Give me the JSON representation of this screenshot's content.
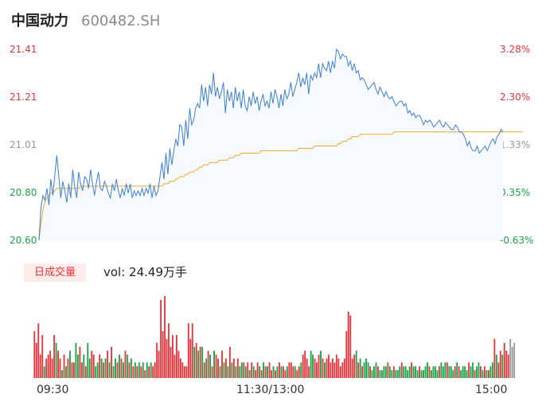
{
  "header": {
    "name": "中国动力",
    "code": "600482.SH"
  },
  "price_axis": [
    "21.41",
    "21.21",
    "21.01",
    "20.80",
    "20.60"
  ],
  "pct_axis": [
    "3.28%",
    "2.30%",
    "1.33%",
    "0.35%",
    "-0.63%"
  ],
  "volume": {
    "tab_label": "日成交量",
    "summary": "vol: 24.49万手"
  },
  "time_axis": [
    "09:30",
    "11:30/13:00",
    "15:00"
  ],
  "colors": {
    "up": "#e8353b",
    "down": "#1aa34a",
    "neutral": "#999999",
    "price_line": "#3b7fd9",
    "avg_line": "#f0a92a",
    "area_fill": "#f6f9fd"
  },
  "chart_data": {
    "type": "line",
    "ylim": [
      20.6,
      21.41
    ],
    "pct_range": [
      "-0.63%",
      "3.28%"
    ],
    "minutes": 240,
    "price": [
      20.6,
      20.74,
      20.79,
      20.77,
      20.82,
      20.75,
      20.86,
      20.79,
      20.88,
      20.96,
      20.87,
      20.78,
      20.85,
      20.81,
      20.76,
      20.84,
      20.78,
      20.9,
      20.83,
      20.78,
      20.89,
      20.84,
      20.81,
      20.87,
      20.86,
      20.82,
      20.9,
      20.84,
      20.79,
      20.85,
      20.89,
      20.82,
      20.81,
      20.85,
      20.83,
      20.8,
      20.78,
      20.84,
      20.81,
      20.86,
      20.81,
      20.78,
      20.82,
      20.79,
      20.84,
      20.8,
      20.84,
      20.78,
      20.81,
      20.79,
      20.81,
      20.79,
      20.82,
      20.79,
      20.82,
      20.8,
      20.84,
      20.78,
      20.83,
      20.79,
      20.81,
      20.87,
      20.93,
      20.86,
      20.97,
      20.88,
      20.99,
      20.92,
      20.98,
      21.03,
      21.0,
      21.09,
      21.08,
      21.0,
      21.11,
      21.03,
      21.16,
      21.09,
      21.11,
      21.16,
      21.18,
      21.16,
      21.26,
      21.19,
      21.25,
      21.17,
      21.26,
      21.22,
      21.31,
      21.21,
      21.25,
      21.2,
      21.23,
      21.27,
      21.14,
      21.24,
      21.19,
      21.23,
      21.16,
      21.25,
      21.19,
      21.23,
      21.16,
      21.24,
      21.17,
      21.15,
      21.21,
      21.17,
      21.23,
      21.18,
      21.21,
      21.15,
      21.19,
      21.22,
      21.17,
      21.19,
      21.16,
      21.23,
      21.18,
      21.24,
      21.21,
      21.16,
      21.22,
      21.17,
      21.24,
      21.2,
      21.22,
      21.27,
      21.21,
      21.24,
      21.27,
      21.31,
      21.25,
      21.29,
      21.26,
      21.31,
      21.22,
      21.3,
      21.28,
      21.31,
      21.29,
      21.35,
      21.29,
      21.35,
      21.33,
      21.32,
      21.36,
      21.31,
      21.36,
      21.33,
      21.41,
      21.4,
      21.37,
      21.39,
      21.38,
      21.38,
      21.34,
      21.36,
      21.32,
      21.35,
      21.31,
      21.32,
      21.28,
      21.29,
      21.28,
      21.26,
      21.24,
      21.25,
      21.26,
      21.27,
      21.24,
      21.22,
      21.25,
      21.23,
      21.21,
      21.23,
      21.21,
      21.2,
      21.21,
      21.19,
      21.17,
      21.18,
      21.19,
      21.19,
      21.17,
      21.18,
      21.14,
      21.15,
      21.13,
      21.14,
      21.12,
      21.13,
      21.13,
      21.11,
      21.09,
      21.11,
      21.1,
      21.11,
      21.1,
      21.08,
      21.09,
      21.1,
      21.11,
      21.09,
      21.08,
      21.1,
      21.09,
      21.08,
      21.07,
      21.07,
      21.09,
      21.08,
      21.06,
      21.06,
      21.05,
      21.03,
      21.0,
      21.02,
      20.99,
      20.98,
      20.98,
      21.0,
      20.97,
      20.98,
      20.99,
      21.0,
      20.98,
      21.0,
      21.02,
      21.03,
      21.01,
      21.04,
      21.05,
      21.07,
      21.06
    ],
    "avg": [
      20.6,
      20.67,
      20.73,
      20.76,
      20.78,
      20.79,
      20.8,
      20.8,
      20.81,
      20.82,
      20.82,
      20.82,
      20.82,
      20.82,
      20.82,
      20.82,
      20.82,
      20.82,
      20.82,
      20.82,
      20.82,
      20.83,
      20.83,
      20.83,
      20.83,
      20.83,
      20.83,
      20.83,
      20.83,
      20.83,
      20.83,
      20.83,
      20.83,
      20.83,
      20.83,
      20.83,
      20.83,
      20.83,
      20.83,
      20.83,
      20.83,
      20.83,
      20.83,
      20.83,
      20.83,
      20.83,
      20.83,
      20.83,
      20.83,
      20.83,
      20.83,
      20.83,
      20.83,
      20.83,
      20.83,
      20.83,
      20.83,
      20.83,
      20.83,
      20.83,
      20.83,
      20.83,
      20.83,
      20.84,
      20.84,
      20.84,
      20.85,
      20.85,
      20.85,
      20.86,
      20.86,
      20.87,
      20.87,
      20.87,
      20.88,
      20.88,
      20.89,
      20.89,
      20.89,
      20.9,
      20.9,
      20.91,
      20.91,
      20.92,
      20.92,
      20.92,
      20.93,
      20.93,
      20.93,
      20.93,
      20.93,
      20.94,
      20.94,
      20.94,
      20.94,
      20.94,
      20.95,
      20.95,
      20.95,
      20.96,
      20.96,
      20.96,
      20.97,
      20.97,
      20.97,
      20.97,
      20.97,
      20.97,
      20.97,
      20.97,
      20.97,
      20.97,
      20.98,
      20.98,
      20.98,
      20.98,
      20.98,
      20.98,
      20.98,
      20.98,
      20.98,
      20.98,
      20.98,
      20.98,
      20.98,
      20.98,
      20.98,
      20.98,
      20.98,
      20.98,
      20.98,
      20.99,
      20.99,
      20.99,
      20.99,
      20.99,
      20.99,
      20.99,
      20.99,
      21.0,
      21.0,
      21.0,
      21.0,
      21.0,
      21.0,
      21.0,
      21.0,
      21.0,
      21.0,
      21.0,
      21.0,
      21.01,
      21.01,
      21.02,
      21.02,
      21.02,
      21.03,
      21.03,
      21.04,
      21.04,
      21.04,
      21.04,
      21.05,
      21.05,
      21.05,
      21.05,
      21.05,
      21.05,
      21.05,
      21.05,
      21.05,
      21.05,
      21.05,
      21.05,
      21.05,
      21.05,
      21.05,
      21.05,
      21.05,
      21.06,
      21.06,
      21.06,
      21.06,
      21.06,
      21.06,
      21.06,
      21.06,
      21.06,
      21.06,
      21.06,
      21.06,
      21.06,
      21.06,
      21.06,
      21.06,
      21.06,
      21.06,
      21.06,
      21.06,
      21.06,
      21.06,
      21.06,
      21.06,
      21.06,
      21.06,
      21.06,
      21.06,
      21.06,
      21.06,
      21.06,
      21.06,
      21.06,
      21.06,
      21.06,
      21.06,
      21.06,
      21.06,
      21.06,
      21.06,
      21.06,
      21.06,
      21.06,
      21.06,
      21.06,
      21.06,
      21.06,
      21.06,
      21.06,
      21.06,
      21.06,
      21.06,
      21.06,
      21.06,
      21.06,
      21.06,
      21.06,
      21.06,
      21.06,
      21.06,
      21.06,
      21.06,
      21.06,
      21.06,
      21.06,
      21.06
    ],
    "volume": [
      12,
      9,
      14,
      6,
      11,
      3,
      5,
      6,
      7,
      5,
      11,
      9,
      7,
      5,
      2,
      6,
      3,
      5,
      7,
      4,
      4,
      9,
      6,
      8,
      4,
      6,
      3,
      9,
      5,
      7,
      6,
      3,
      4,
      6,
      5,
      4,
      5,
      7,
      4,
      8,
      3,
      5,
      4,
      6,
      5,
      4,
      7,
      6,
      4,
      5,
      3,
      4,
      3,
      4,
      3,
      4,
      2,
      4,
      3,
      4,
      3,
      4,
      9,
      7,
      20,
      12,
      21,
      10,
      14,
      8,
      11,
      6,
      11,
      7,
      5,
      4,
      3,
      3,
      14,
      10,
      14,
      8,
      9,
      7,
      8,
      8,
      4,
      5,
      7,
      6,
      3,
      7,
      6,
      5,
      3,
      7,
      4,
      5,
      3,
      8,
      4,
      5,
      3,
      5,
      3,
      4,
      4,
      3,
      4,
      2,
      4,
      3,
      2,
      4,
      3,
      2,
      4,
      3,
      3,
      4,
      2,
      3,
      2,
      3,
      4,
      3,
      3,
      2,
      3,
      4,
      4,
      3,
      3,
      2,
      3,
      4,
      6,
      7,
      5,
      3,
      7,
      6,
      5,
      4,
      6,
      7,
      5,
      4,
      5,
      6,
      4,
      5,
      4,
      6,
      5,
      3,
      4,
      5,
      12,
      17,
      16,
      5,
      6,
      7,
      4,
      5,
      3,
      4,
      5,
      4,
      3,
      2,
      3,
      4,
      3,
      2,
      2,
      3,
      3,
      4,
      3,
      2,
      3,
      2,
      2,
      3,
      4,
      3,
      3,
      2,
      3,
      4,
      3,
      3,
      2,
      3,
      2,
      2,
      3,
      4,
      3,
      2,
      3,
      3,
      2,
      3,
      4,
      3,
      4,
      4,
      3,
      3,
      2,
      3,
      4,
      3,
      2,
      3,
      3,
      2,
      4,
      3,
      4,
      2,
      3,
      4,
      3,
      2,
      3,
      2,
      2,
      3,
      4,
      10,
      6,
      4,
      7,
      6,
      9,
      7,
      6,
      10,
      8,
      9
    ],
    "volume_dir": [
      1,
      1,
      1,
      1,
      1,
      -1,
      1,
      1,
      1,
      1,
      1,
      -1,
      1,
      1,
      -1,
      1,
      -1,
      1,
      -1,
      1,
      1,
      -1,
      -1,
      1,
      1,
      -1,
      1,
      -1,
      -1,
      1,
      1,
      -1,
      -1,
      1,
      -1,
      1,
      -1,
      1,
      -1,
      1,
      -1,
      -1,
      1,
      -1,
      1,
      -1,
      1,
      -1,
      1,
      -1,
      1,
      -1,
      1,
      -1,
      1,
      -1,
      1,
      -1,
      1,
      -1,
      1,
      1,
      1,
      1,
      1,
      1,
      1,
      1,
      1,
      1,
      1,
      1,
      1,
      1,
      1,
      1,
      1,
      1,
      1,
      1,
      1,
      -1,
      1,
      -1,
      1,
      -1,
      1,
      -1,
      1,
      -1,
      1,
      -1,
      1,
      1,
      -1,
      1,
      -1,
      1,
      -1,
      1,
      -1,
      1,
      -1,
      1,
      -1,
      -1,
      1,
      -1,
      1,
      -1,
      1,
      -1,
      1,
      1,
      -1,
      1,
      -1,
      1,
      -1,
      1,
      1,
      -1,
      1,
      -1,
      1,
      -1,
      1,
      1,
      -1,
      1,
      1,
      1,
      -1,
      1,
      1,
      -1,
      1,
      1,
      1,
      1,
      -1,
      -1,
      1,
      1,
      1,
      -1,
      1,
      -1,
      1,
      1,
      1,
      1,
      1,
      1,
      1,
      1,
      1,
      1,
      1,
      1,
      1,
      1,
      1,
      -1,
      1,
      -1,
      1,
      -1,
      -1,
      -1,
      1,
      -1,
      -1,
      -1,
      1,
      -1,
      -1,
      -1,
      -1,
      1,
      -1,
      -1,
      1,
      -1,
      -1,
      -1,
      1,
      -1,
      -1,
      -1,
      -1,
      1,
      -1,
      -1,
      -1,
      1,
      -1,
      -1,
      -1,
      -1,
      1,
      -1,
      -1,
      -1,
      -1,
      1,
      -1,
      -1,
      -1,
      1,
      -1,
      -1,
      -1,
      1,
      -1,
      1,
      -1,
      -1,
      -1,
      -1,
      1,
      -1,
      -1,
      1,
      -1,
      -1,
      1,
      -1,
      1,
      -1,
      1,
      -1,
      -1,
      1,
      -1,
      1,
      1,
      -1,
      1,
      1,
      1,
      0
    ]
  }
}
